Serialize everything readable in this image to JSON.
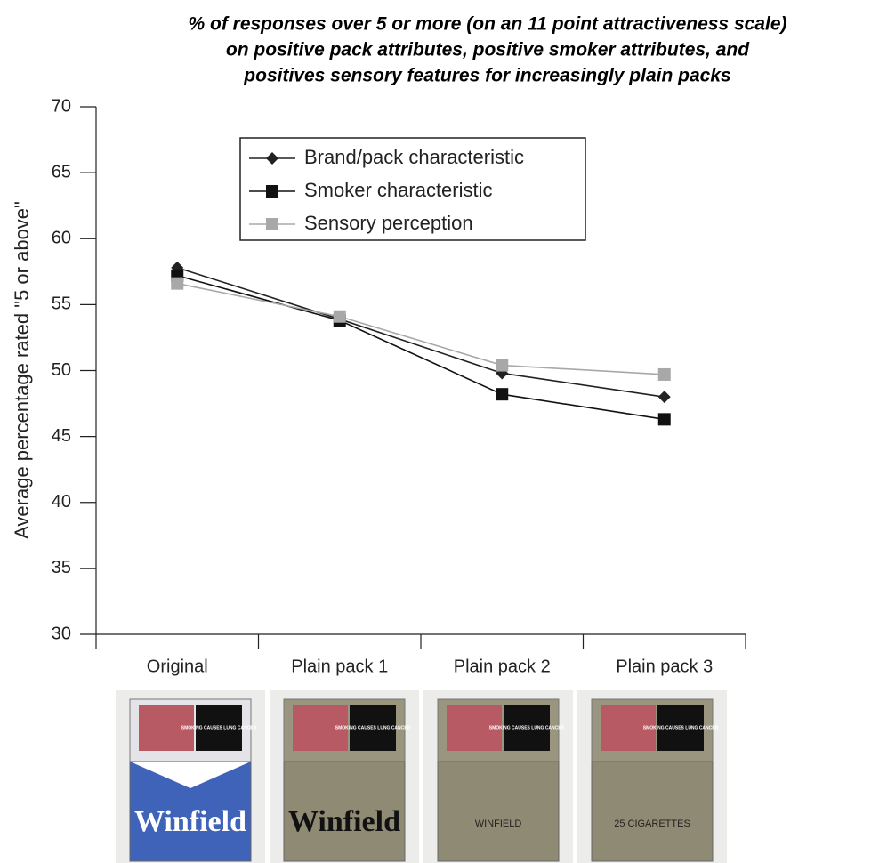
{
  "chart_data": {
    "type": "line",
    "title": [
      "% of responses over 5 or more (on an 11 point attractiveness scale)",
      "on positive pack attributes, positive smoker attributes, and",
      "positives sensory features for increasingly plain packs"
    ],
    "y_label": "Average percentage rated \"5 or above\"",
    "categories": [
      "Original",
      "Plain pack 1",
      "Plain pack 2",
      "Plain pack 3"
    ],
    "series": [
      {
        "name": "Brand/pack characteristic",
        "color": "#222222",
        "marker": "diamond",
        "values": [
          57.8,
          53.9,
          49.8,
          48.0
        ]
      },
      {
        "name": "Smoker characteristic",
        "color": "#111111",
        "marker": "square",
        "values": [
          57.2,
          53.8,
          48.2,
          46.3
        ]
      },
      {
        "name": "Sensory perception",
        "color": "#a8a8a8",
        "marker": "square",
        "values": [
          56.6,
          54.1,
          50.4,
          49.7
        ]
      }
    ],
    "ylim": [
      30,
      70
    ],
    "yticks": [
      30,
      35,
      40,
      45,
      50,
      55,
      60,
      65,
      70
    ],
    "legend": "upper center"
  },
  "packs": [
    {
      "warning": "SMOKING CAUSES LUNG CANCER",
      "brand": "Winfield",
      "body": "#3f63b8"
    },
    {
      "warning": "SMOKING CAUSES LUNG CANCER",
      "brand": "Winfield",
      "body": "#8f8a73"
    },
    {
      "warning": "SMOKING CAUSES LUNG CANCER",
      "brand": "WINFIELD",
      "body": "#8f8a73"
    },
    {
      "warning": "SMOKING CAUSES LUNG CANCER",
      "brand": "25 CIGARETTES",
      "body": "#8f8a73"
    }
  ]
}
